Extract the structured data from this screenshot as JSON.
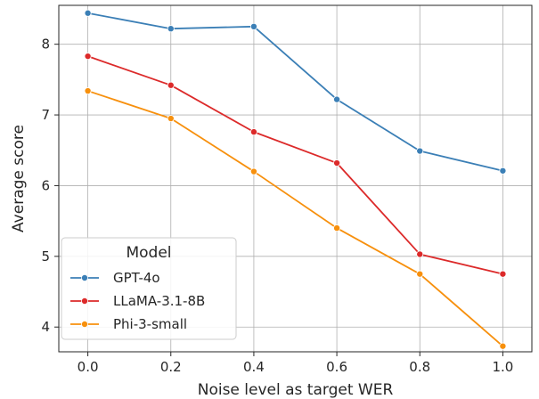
{
  "chart_data": {
    "type": "line",
    "xlabel": "Noise level as target WER",
    "ylabel": "Average score",
    "x": [
      0.0,
      0.2,
      0.4,
      0.6,
      0.8,
      1.0
    ],
    "x_tick_labels": [
      "0.0",
      "0.2",
      "0.4",
      "0.6",
      "0.8",
      "1.0"
    ],
    "y_ticks": [
      4,
      5,
      6,
      7,
      8
    ],
    "y_tick_labels": [
      "4",
      "5",
      "6",
      "7",
      "8"
    ],
    "xlim": [
      -0.07,
      1.07
    ],
    "ylim": [
      3.65,
      8.55
    ],
    "grid": true,
    "legend": {
      "title": "Model",
      "placement": "lower-left"
    },
    "series": [
      {
        "name": "GPT-4o",
        "color": "#3b7fb6",
        "values": [
          8.44,
          8.22,
          8.25,
          7.22,
          6.49,
          6.21
        ]
      },
      {
        "name": "LLaMA-3.1-8B",
        "color": "#dc2a2a",
        "values": [
          7.83,
          7.42,
          6.76,
          6.32,
          5.03,
          4.75
        ]
      },
      {
        "name": "Phi-3-small",
        "color": "#f7900d",
        "values": [
          7.34,
          6.95,
          6.2,
          5.4,
          4.75,
          3.73
        ]
      }
    ]
  }
}
